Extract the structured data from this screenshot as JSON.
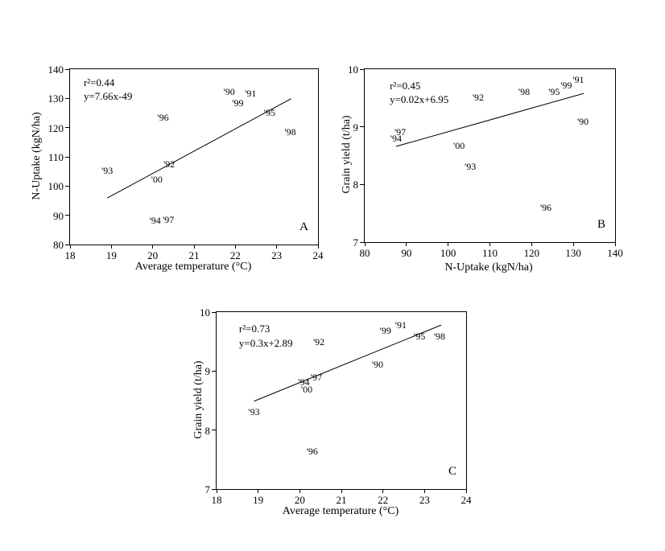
{
  "figure": {
    "background_color": "#ffffff",
    "ink_color": "#000000"
  },
  "chart_data": [
    {
      "type": "scatter",
      "panel_label": "A",
      "xlabel": "Average temperature (°C)",
      "ylabel": "N-Uptake (kgN/ha)",
      "xlim": [
        18,
        24
      ],
      "ylim": [
        80,
        140
      ],
      "xticks": [
        18,
        19,
        20,
        21,
        22,
        23,
        24
      ],
      "yticks": [
        80,
        90,
        100,
        110,
        120,
        130,
        140
      ],
      "grid": false,
      "annotation": [
        "r²=0.44",
        "y=7.66x-49"
      ],
      "regression_line": {
        "x1": 18.9,
        "y1": 95.9,
        "x2": 23.35,
        "y2": 129.9
      },
      "points": [
        {
          "label": "'90",
          "x": 21.85,
          "y": 132.3
        },
        {
          "label": "'91",
          "x": 22.37,
          "y": 131.7
        },
        {
          "label": "'99",
          "x": 22.06,
          "y": 128.4
        },
        {
          "label": "'95",
          "x": 22.83,
          "y": 125.1
        },
        {
          "label": "'96",
          "x": 20.25,
          "y": 123.5
        },
        {
          "label": "'98",
          "x": 23.33,
          "y": 118.5
        },
        {
          "label": "'92",
          "x": 20.4,
          "y": 107.5
        },
        {
          "label": "'93",
          "x": 18.9,
          "y": 105.3
        },
        {
          "label": "'00",
          "x": 20.1,
          "y": 102.3
        },
        {
          "label": "'94",
          "x": 20.06,
          "y": 88.3
        },
        {
          "label": "'97",
          "x": 20.38,
          "y": 88.5
        }
      ]
    },
    {
      "type": "scatter",
      "panel_label": "B",
      "xlabel": "N-Uptake (kgN/ha)",
      "ylabel": "Grain yield (t/ha)",
      "xlim": [
        80,
        140
      ],
      "ylim": [
        7,
        10
      ],
      "xticks": [
        80,
        90,
        100,
        110,
        120,
        130,
        140
      ],
      "yticks": [
        7,
        8,
        9,
        10
      ],
      "grid": false,
      "annotation": [
        "r²=0.45",
        "y=0.02x+6.95"
      ],
      "regression_line": {
        "x1": 87.5,
        "y1": 8.66,
        "x2": 132.5,
        "y2": 9.58
      },
      "points": [
        {
          "label": "'91",
          "x": 131.2,
          "y": 9.82
        },
        {
          "label": "'99",
          "x": 128.3,
          "y": 9.72
        },
        {
          "label": "'95",
          "x": 125.4,
          "y": 9.61
        },
        {
          "label": "'98",
          "x": 118.2,
          "y": 9.61
        },
        {
          "label": "'92",
          "x": 107.2,
          "y": 9.51
        },
        {
          "label": "'90",
          "x": 132.3,
          "y": 9.09
        },
        {
          "label": "'97",
          "x": 88.5,
          "y": 8.91
        },
        {
          "label": "'94",
          "x": 87.5,
          "y": 8.8
        },
        {
          "label": "'00",
          "x": 102.6,
          "y": 8.67
        },
        {
          "label": "'93",
          "x": 105.3,
          "y": 8.31
        },
        {
          "label": "'96",
          "x": 123.4,
          "y": 7.6
        }
      ]
    },
    {
      "type": "scatter",
      "panel_label": "C",
      "xlabel": "Average temperature (°C)",
      "ylabel": "Grain yield (t/ha)",
      "xlim": [
        18,
        24
      ],
      "ylim": [
        7,
        10
      ],
      "xticks": [
        18,
        19,
        20,
        21,
        22,
        23,
        24
      ],
      "yticks": [
        7,
        8,
        9,
        10
      ],
      "grid": false,
      "annotation": [
        "r²=0.73",
        "y=0.3x+2.89"
      ],
      "regression_line": {
        "x1": 18.9,
        "y1": 8.49,
        "x2": 23.4,
        "y2": 9.78
      },
      "points": [
        {
          "label": "'91",
          "x": 22.43,
          "y": 9.78
        },
        {
          "label": "'99",
          "x": 22.06,
          "y": 9.69
        },
        {
          "label": "'95",
          "x": 22.88,
          "y": 9.59
        },
        {
          "label": "'98",
          "x": 23.36,
          "y": 9.59
        },
        {
          "label": "'92",
          "x": 20.46,
          "y": 9.49
        },
        {
          "label": "'90",
          "x": 21.87,
          "y": 9.12
        },
        {
          "label": "'97",
          "x": 20.4,
          "y": 8.89
        },
        {
          "label": "'94",
          "x": 20.1,
          "y": 8.81
        },
        {
          "label": "'00",
          "x": 20.17,
          "y": 8.69
        },
        {
          "label": "'93",
          "x": 18.9,
          "y": 8.31
        },
        {
          "label": "'96",
          "x": 20.3,
          "y": 7.64
        }
      ]
    }
  ]
}
